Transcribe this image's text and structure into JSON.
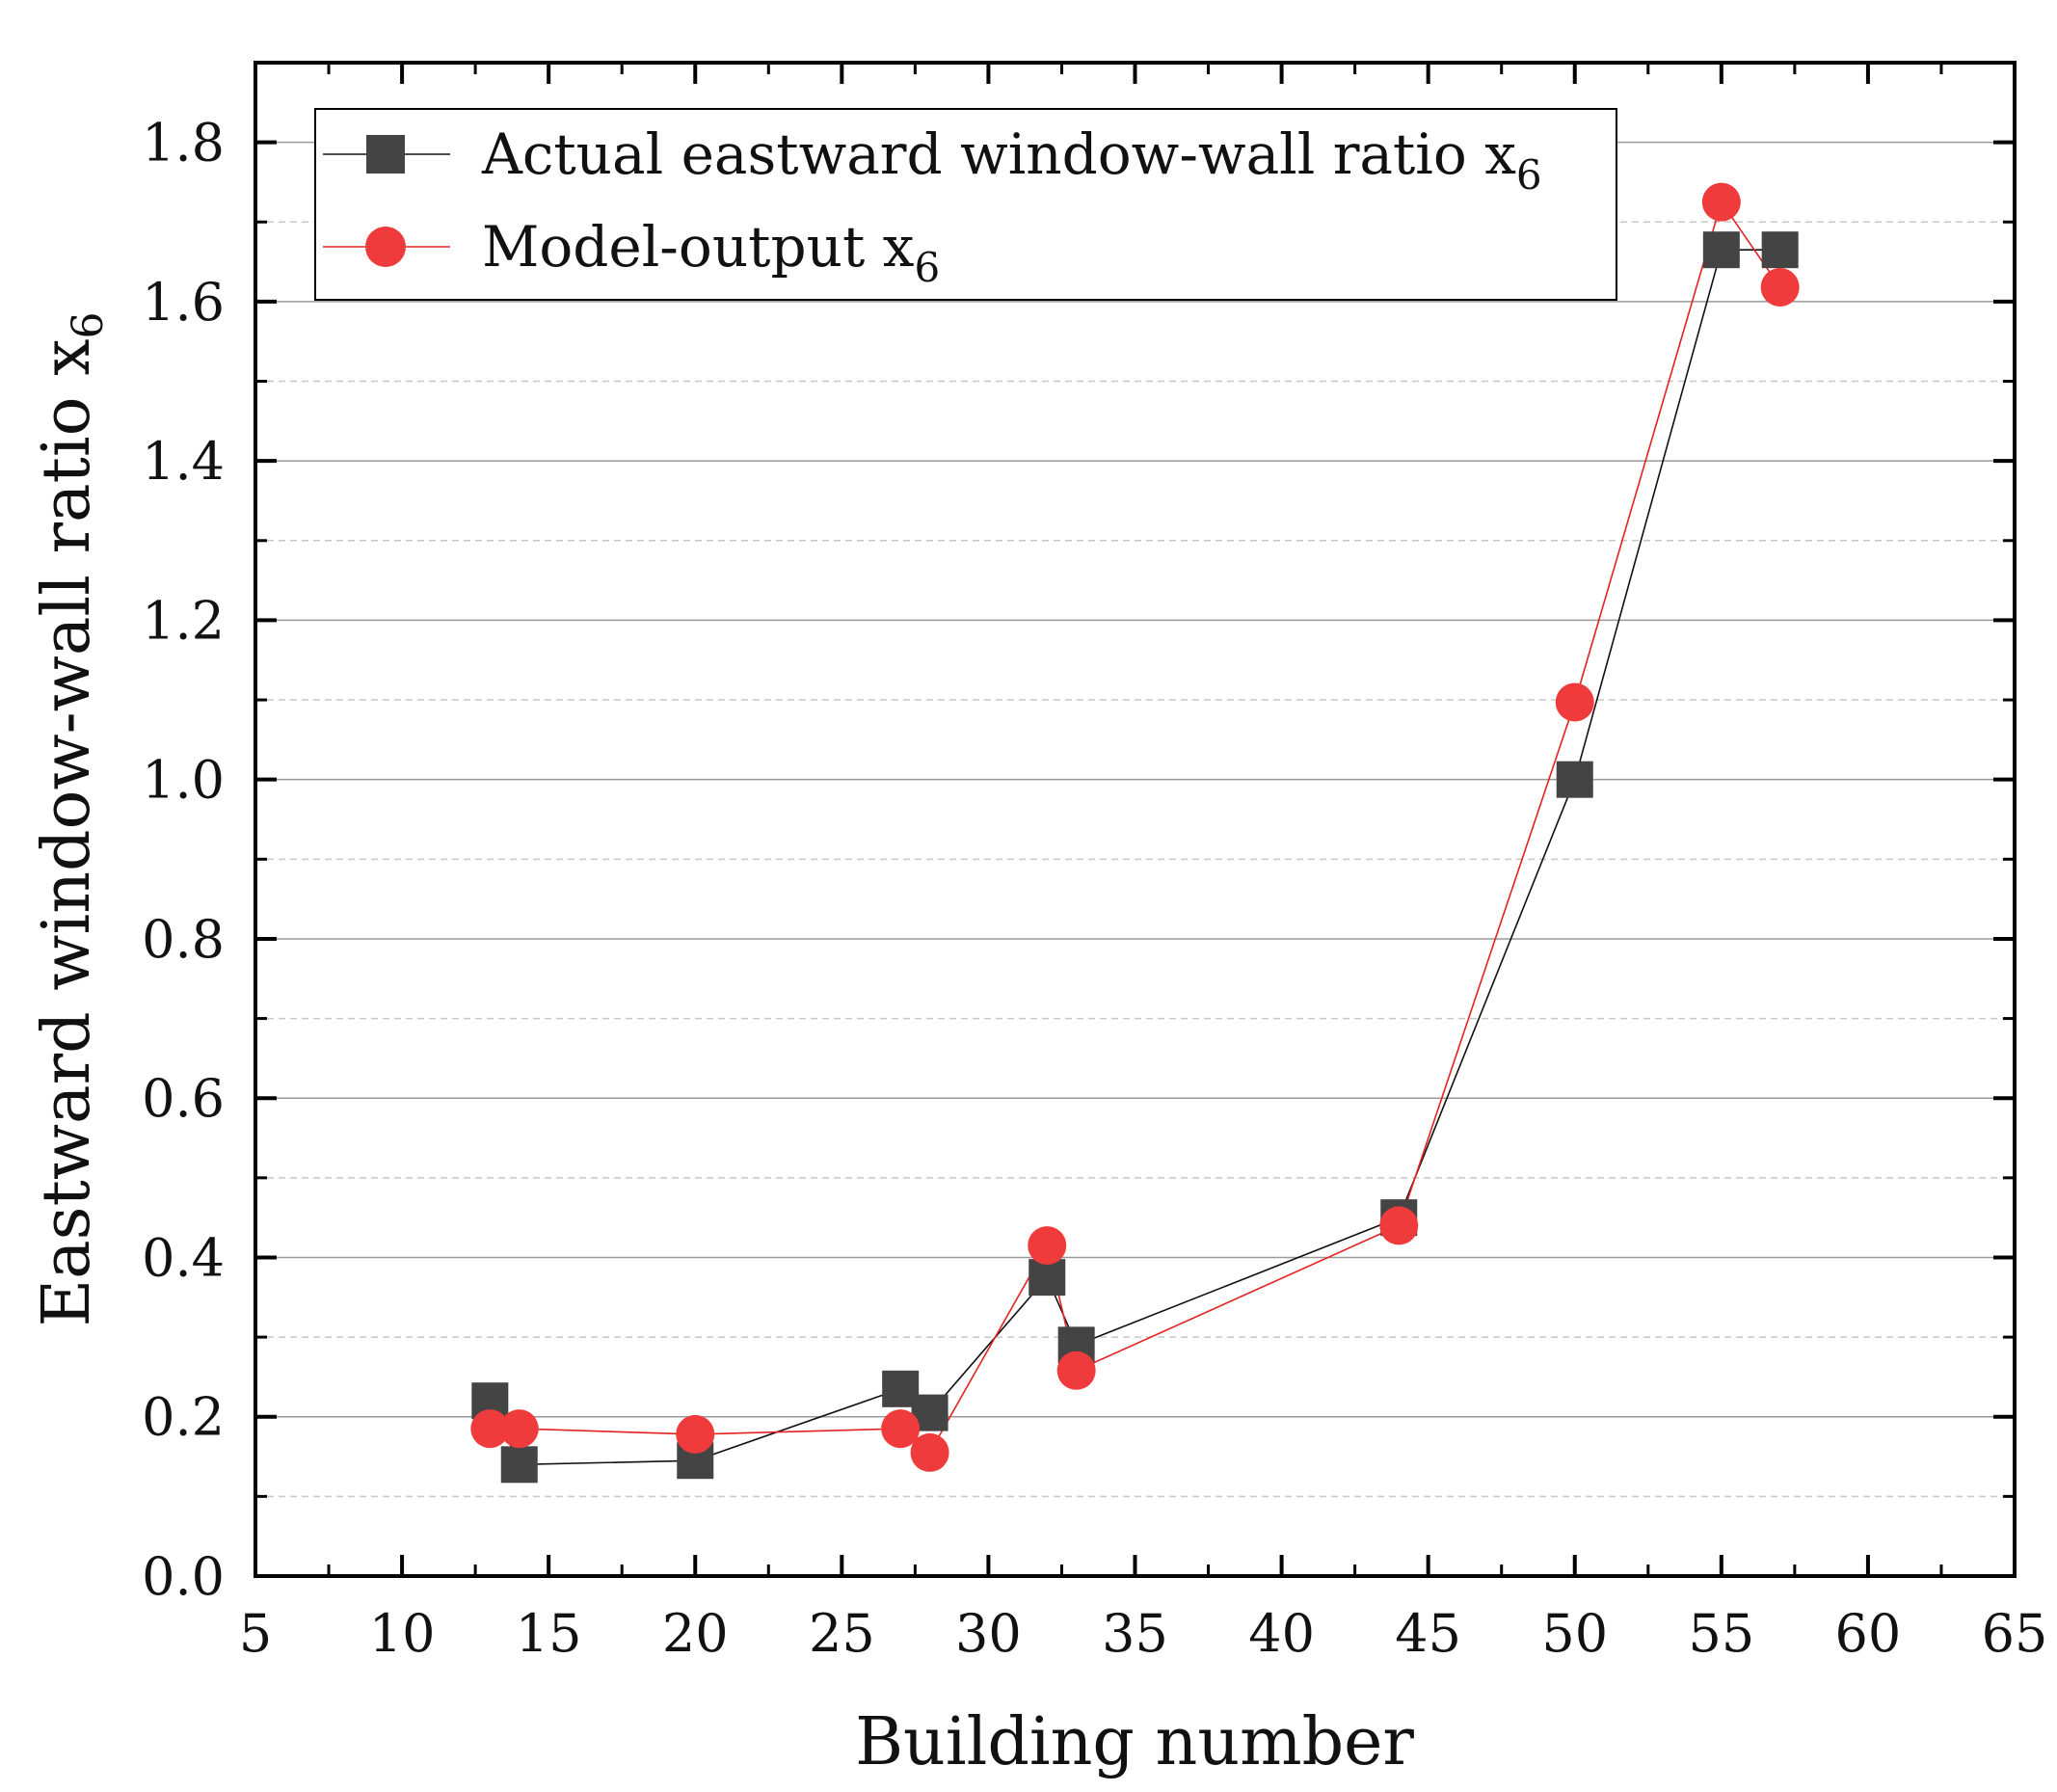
{
  "chart_data": {
    "type": "line",
    "title": "",
    "xlabel": "Building number",
    "ylabel": "Eastward window-wall ratio x",
    "ylabel_subscript": "6",
    "xlim": [
      5,
      65
    ],
    "ylim": [
      0,
      1.9
    ],
    "x_ticks": [
      5,
      10,
      15,
      20,
      25,
      30,
      35,
      40,
      45,
      50,
      55,
      60,
      65
    ],
    "x_minor_ticks": [
      7.5,
      12.5,
      17.5,
      22.5,
      27.5,
      32.5,
      37.5,
      42.5,
      47.5,
      52.5,
      57.5,
      62.5
    ],
    "y_ticks": [
      0.0,
      0.2,
      0.4,
      0.6,
      0.8,
      1.0,
      1.2,
      1.4,
      1.6,
      1.8
    ],
    "y_tick_labels": [
      "0.0",
      "0.2",
      "0.4",
      "0.6",
      "0.8",
      "1.0",
      "1.2",
      "1.4",
      "1.6",
      "1.8"
    ],
    "y_minor_ticks": [
      0.1,
      0.3,
      0.5,
      0.7,
      0.9,
      1.1,
      1.3,
      1.5,
      1.7
    ],
    "grid": true,
    "legend_position": "top-left",
    "series": [
      {
        "name": "Actual eastward window-wall ratio x",
        "subscript": "6",
        "marker": "square",
        "color": "#444444",
        "line_color": "#111111",
        "x": [
          13,
          14,
          20,
          27,
          28,
          32,
          33,
          44,
          50,
          55,
          57
        ],
        "values": [
          0.22,
          0.14,
          0.145,
          0.235,
          0.205,
          0.375,
          0.29,
          0.45,
          1.0,
          1.665,
          1.665
        ]
      },
      {
        "name": "Model-output x",
        "subscript": "6",
        "marker": "circle",
        "color": "#ef3b3b",
        "line_color": "#e32222",
        "x": [
          13,
          14,
          20,
          27,
          28,
          32,
          33,
          44,
          50,
          55,
          57
        ],
        "values": [
          0.185,
          0.185,
          0.178,
          0.185,
          0.155,
          0.415,
          0.258,
          0.44,
          1.097,
          1.725,
          1.618
        ]
      }
    ]
  }
}
